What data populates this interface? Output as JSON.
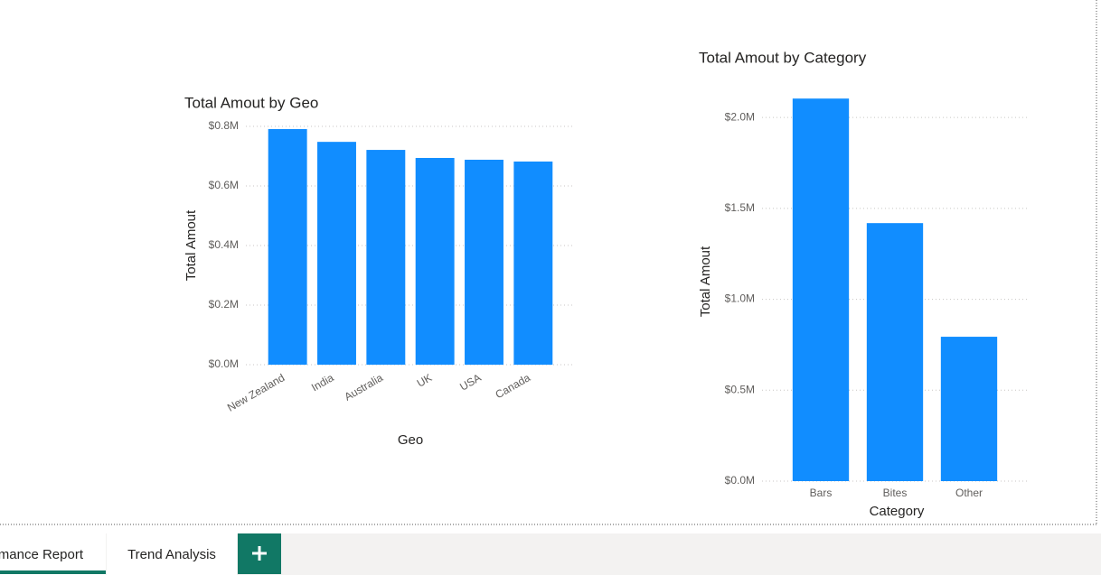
{
  "chart_data": [
    {
      "type": "bar",
      "title": "Total Amout by Geo",
      "x_label": "Geo",
      "y_label": "Total Amout",
      "categories": [
        "New Zealand",
        "India",
        "Australia",
        "UK",
        "USA",
        "Canada"
      ],
      "values": [
        791000,
        748000,
        721000,
        694000,
        688000,
        682000
      ],
      "color": "#118dff",
      "ylim": [
        0,
        800000
      ],
      "yticks": [
        {
          "value": 0,
          "label": "$0.0M"
        },
        {
          "value": 200000,
          "label": "$0.2M"
        },
        {
          "value": 400000,
          "label": "$0.4M"
        },
        {
          "value": 600000,
          "label": "$0.6M"
        },
        {
          "value": 800000,
          "label": "$0.8M"
        }
      ],
      "grid": true
    },
    {
      "type": "bar",
      "title": "Total Amout by Category",
      "x_label": "Category",
      "y_label": "Total Amout",
      "categories": [
        "Bars",
        "Bites",
        "Other"
      ],
      "values": [
        2104000,
        1419000,
        794000
      ],
      "color": "#118dff",
      "ylim": [
        0,
        2100000
      ],
      "yticks": [
        {
          "value": 0,
          "label": "$0.0M"
        },
        {
          "value": 500000,
          "label": "$0.5M"
        },
        {
          "value": 1000000,
          "label": "$1.0M"
        },
        {
          "value": 1500000,
          "label": "$1.5M"
        },
        {
          "value": 2000000,
          "label": "$2.0M"
        }
      ],
      "grid": true
    }
  ],
  "tabs": [
    "mance Report",
    "Trend Analysis"
  ]
}
